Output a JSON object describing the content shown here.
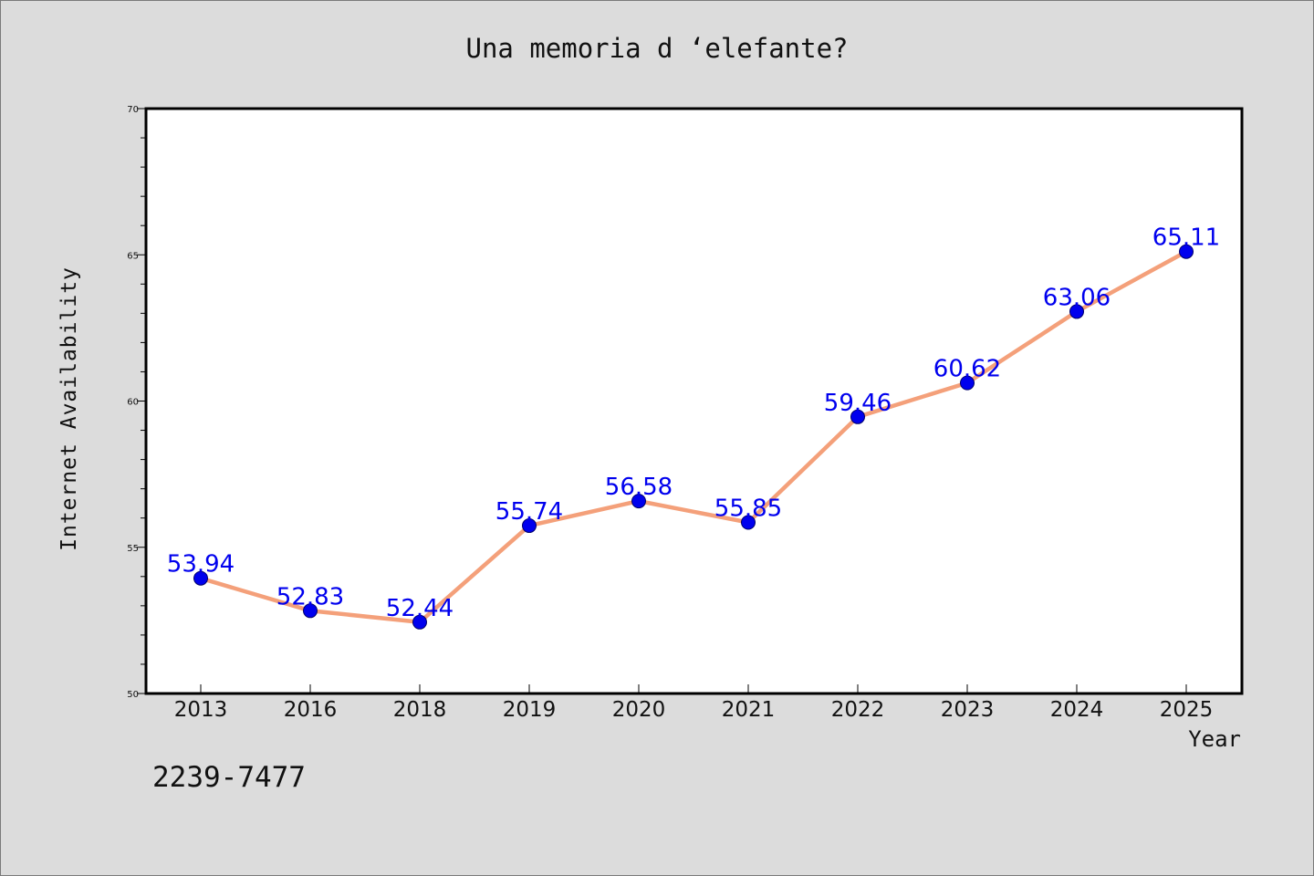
{
  "chart_data": {
    "type": "line",
    "title": "Una memoria d ‘elefante?",
    "xlabel": "Year",
    "ylabel": "Internet Availability",
    "categories": [
      "2013",
      "2016",
      "2018",
      "2019",
      "2020",
      "2021",
      "2022",
      "2023",
      "2024",
      "2025"
    ],
    "series": [
      {
        "values": [
          53.94,
          52.83,
          52.44,
          55.74,
          56.58,
          55.85,
          59.46,
          60.62,
          63.06,
          65.11
        ],
        "data_labels": [
          "53.94",
          "52.83",
          "52.44",
          "55.74",
          "56.58",
          "55.85",
          "59.46",
          "60.62",
          "63.06",
          "65.11"
        ]
      }
    ],
    "ylim": [
      50,
      70
    ],
    "yticks": [
      "50",
      "55",
      "60",
      "65",
      "70"
    ],
    "y_minor_step": 1,
    "grid": false,
    "legend": "none",
    "colors": {
      "line": "#f4a07a",
      "marker": "#0000ee",
      "label": "#0000ee",
      "background": "#dcdcdc",
      "plot_area": "#ffffff"
    }
  },
  "footnote": "2239-7477"
}
